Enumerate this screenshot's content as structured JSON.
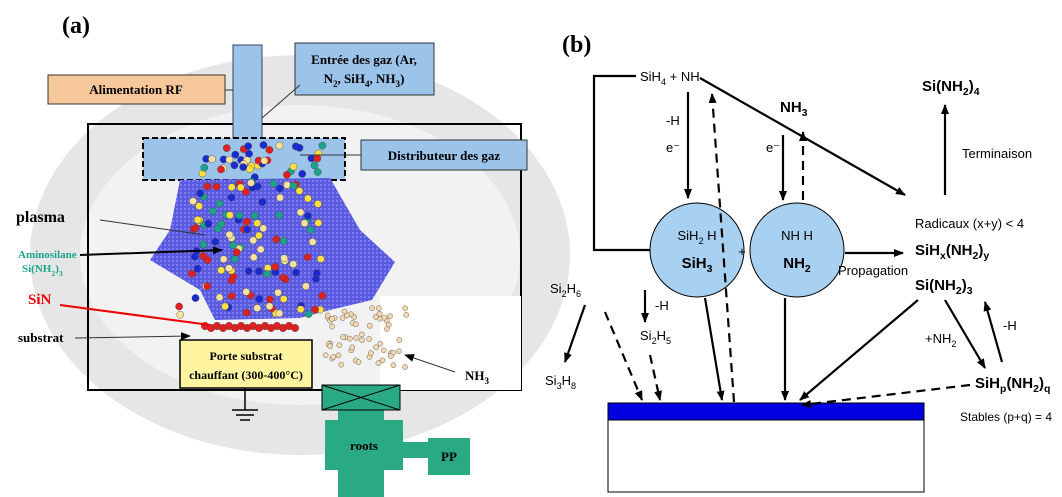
{
  "panel_a": {
    "label": [
      "(a)"
    ],
    "rf": [
      "Alimentation RF"
    ],
    "gas_inlet_1": [
      "Entrée des gaz (Ar,"
    ],
    "gas_inlet_2": [
      "N",
      "2",
      ", SiH",
      "4",
      ", NH",
      "3",
      ")"
    ],
    "distributor": [
      "Distributeur des gaz"
    ],
    "plasma": [
      "plasma"
    ],
    "aminosilane_1": [
      "Aminosilane"
    ],
    "aminosilane_2": [
      "Si(NH",
      "2",
      ")",
      "3"
    ],
    "sin": [
      "SiN"
    ],
    "substrat": [
      "substrat"
    ],
    "holder_1": [
      "Porte substrat"
    ],
    "holder_2": [
      "chauffant (300-400°C)"
    ],
    "nh3": [
      "NH",
      "3"
    ],
    "roots": [
      "roots"
    ],
    "pp": [
      "PP"
    ]
  },
  "panel_b": {
    "label": [
      "(b)"
    ],
    "sih4_nh": [
      "SiH",
      "4",
      " + NH"
    ],
    "minus_h_1": [
      "-H"
    ],
    "e_1": [
      "e⁻"
    ],
    "nh3": [
      "NH",
      "3"
    ],
    "e_2": [
      "e⁻"
    ],
    "si_nh2_4": [
      "Si(NH",
      "2",
      ")",
      "4"
    ],
    "termination": [
      "Terminaison"
    ],
    "sih2_h": [
      "SiH",
      "2",
      " H"
    ],
    "sih3": [
      "SiH",
      "3"
    ],
    "plus": [
      "+"
    ],
    "nh_h": [
      "NH  H"
    ],
    "nh2": [
      "NH",
      "2"
    ],
    "propagation": [
      "Propagation"
    ],
    "radicals": [
      "Radicaux (x+y) < 4"
    ],
    "sihx_nh2y": [
      "SiH",
      "x",
      "(NH",
      "2",
      ")",
      "y"
    ],
    "si_nh2_3": [
      "Si(NH",
      "2",
      ")",
      "3"
    ],
    "si2h6": [
      "Si",
      "2",
      "H",
      "6"
    ],
    "minus_h_2": [
      "-H"
    ],
    "si2h5": [
      "Si",
      "2",
      "H",
      "5"
    ],
    "si3h8": [
      "Si",
      "3",
      "H",
      "8"
    ],
    "plus_nh2": [
      "+NH",
      "2"
    ],
    "minus_h_3": [
      "-H"
    ],
    "sihp_nh2q": [
      "SiH",
      "p",
      "(NH",
      "2",
      ")",
      "q"
    ],
    "stables": [
      "Stables (p+q) = 4"
    ]
  }
}
